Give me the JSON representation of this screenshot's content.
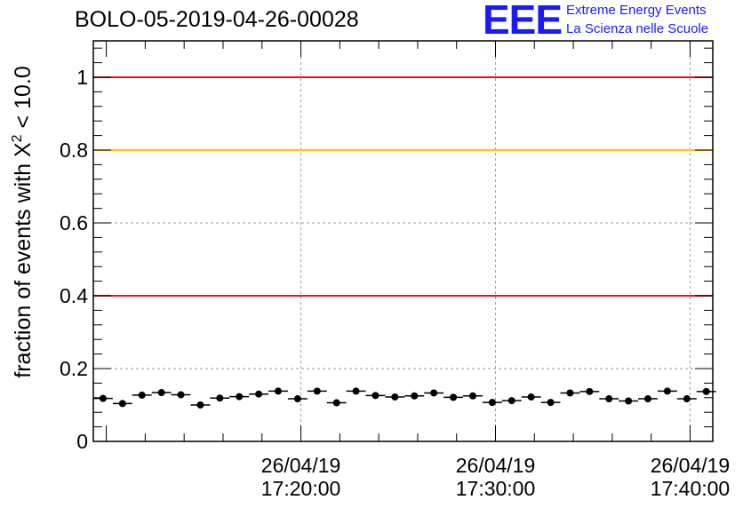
{
  "header": {
    "title": "BOLO-05-2019-04-26-00028",
    "logo_mark": "EEE",
    "logo_line1": "Extreme Energy Events",
    "logo_line2": "La Scienza nelle Scuole"
  },
  "colors": {
    "logo": "#1a1aff",
    "red_line": "#e8141c",
    "yellow_line": "#ffc800",
    "grid": "#a0a0a0",
    "markers": "#000000"
  },
  "chart_data": {
    "type": "scatter",
    "title": "BOLO-05-2019-04-26-00028",
    "ylabel_main": "fraction of events with X",
    "ylabel_sup": "2",
    "ylabel_tail": " < 10.0",
    "xlabel": "",
    "ylim": [
      0,
      1.1
    ],
    "yticks": [
      0,
      0.2,
      0.4,
      0.6,
      0.8,
      1
    ],
    "ytick_labels": [
      "0",
      "0.2",
      "0.4",
      "0.6",
      "0.8",
      "1"
    ],
    "xlim": [
      "2019-04-26 17:09:20",
      "2019-04-26 17:41:10"
    ],
    "xticks": [
      "2019-04-26 17:20:00",
      "2019-04-26 17:30:00",
      "2019-04-26 17:40:00"
    ],
    "xtick_labels": [
      [
        "26/04/19",
        "17:20:00"
      ],
      [
        "26/04/19",
        "17:30:00"
      ],
      [
        "26/04/19",
        "17:40:00"
      ]
    ],
    "grid": true,
    "reference_lines": [
      {
        "y": 1.0,
        "color": "#e8141c"
      },
      {
        "y": 0.8,
        "color": "#ffc800"
      },
      {
        "y": 0.4,
        "color": "#e8141c"
      }
    ],
    "bin_width_seconds": 60,
    "x": [
      "2019-04-26 17:09:50",
      "2019-04-26 17:10:50",
      "2019-04-26 17:11:50",
      "2019-04-26 17:12:50",
      "2019-04-26 17:13:50",
      "2019-04-26 17:14:50",
      "2019-04-26 17:15:50",
      "2019-04-26 17:16:50",
      "2019-04-26 17:17:50",
      "2019-04-26 17:18:50",
      "2019-04-26 17:19:50",
      "2019-04-26 17:20:50",
      "2019-04-26 17:21:50",
      "2019-04-26 17:22:50",
      "2019-04-26 17:23:50",
      "2019-04-26 17:24:50",
      "2019-04-26 17:25:50",
      "2019-04-26 17:26:50",
      "2019-04-26 17:27:50",
      "2019-04-26 17:28:50",
      "2019-04-26 17:29:50",
      "2019-04-26 17:30:50",
      "2019-04-26 17:31:50",
      "2019-04-26 17:32:50",
      "2019-04-26 17:33:50",
      "2019-04-26 17:34:50",
      "2019-04-26 17:35:50",
      "2019-04-26 17:36:50",
      "2019-04-26 17:37:50",
      "2019-04-26 17:38:50",
      "2019-04-26 17:39:50",
      "2019-04-26 17:40:50"
    ],
    "y": [
      0.118,
      0.104,
      0.127,
      0.134,
      0.128,
      0.1,
      0.119,
      0.123,
      0.13,
      0.138,
      0.117,
      0.138,
      0.106,
      0.138,
      0.126,
      0.122,
      0.125,
      0.133,
      0.121,
      0.125,
      0.107,
      0.112,
      0.122,
      0.107,
      0.133,
      0.137,
      0.117,
      0.111,
      0.117,
      0.138,
      0.117,
      0.137
    ]
  }
}
